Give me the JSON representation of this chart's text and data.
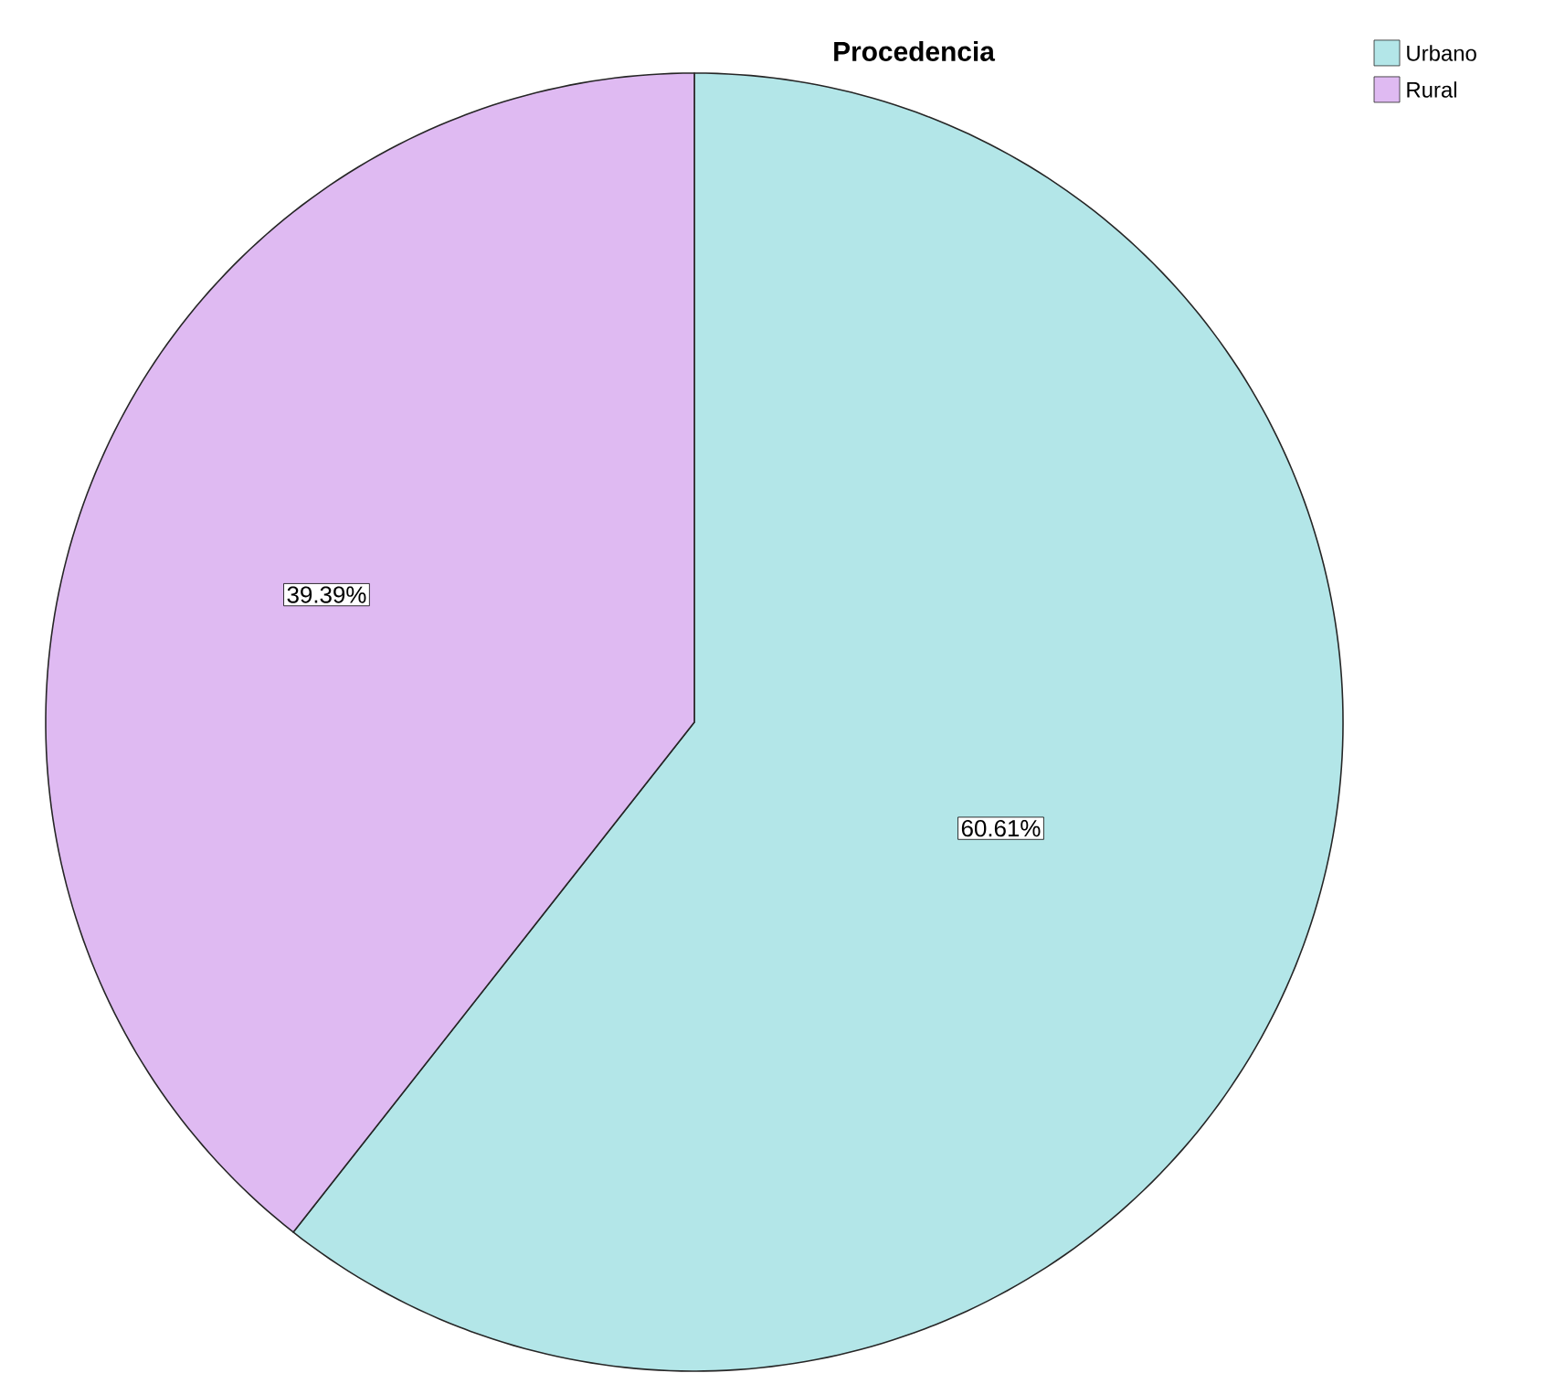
{
  "chart_data": {
    "type": "pie",
    "title": "Procedencia",
    "categories": [
      "Urbano",
      "Rural"
    ],
    "values": [
      60.61,
      39.39
    ],
    "colors": [
      "#b3e6e8",
      "#dfbaf2"
    ],
    "value_labels": [
      "60.61%",
      "39.39%"
    ],
    "legend": "top right"
  }
}
